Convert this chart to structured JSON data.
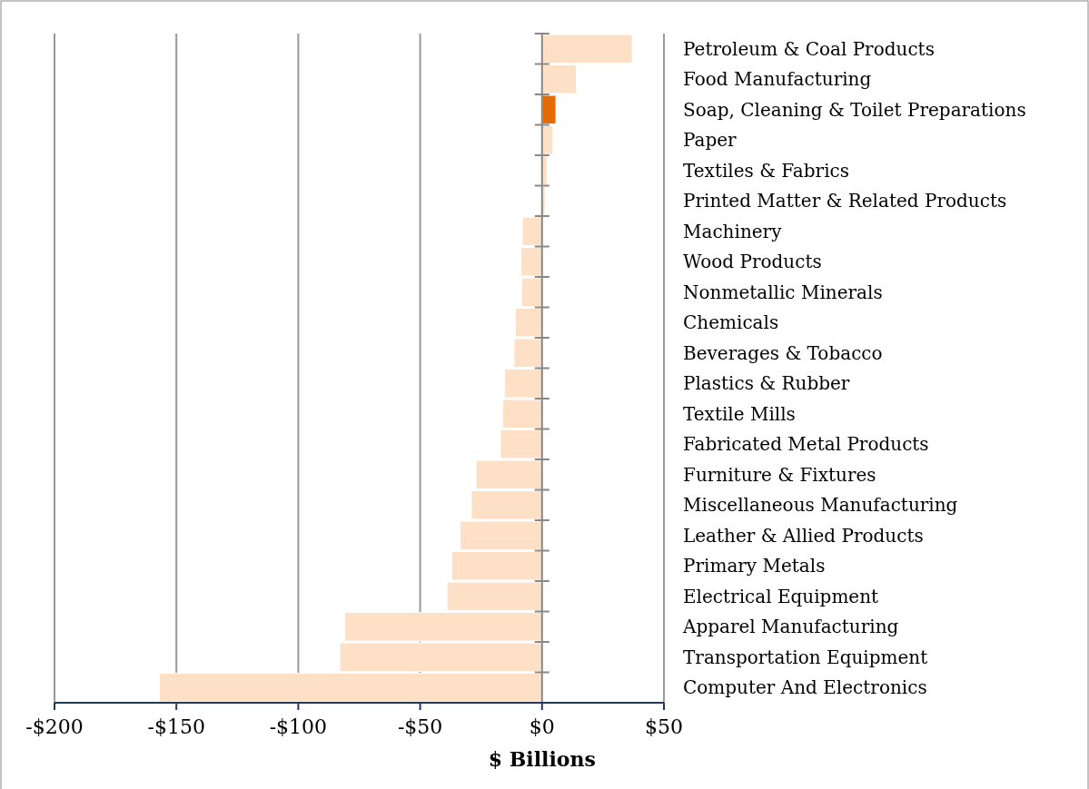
{
  "chart_data": {
    "type": "bar",
    "orientation": "horizontal",
    "xlabel": "$ Billions",
    "categories": [
      "Petroleum & Coal Products",
      "Food Manufacturing",
      "Soap, Cleaning & Toilet Preparations",
      "Paper",
      "Textiles & Fabrics",
      "Printed Matter & Related Products",
      "Machinery",
      "Wood Products",
      "Nonmetallic Minerals",
      "Chemicals",
      "Beverages & Tobacco",
      "Plastics & Rubber",
      "Textile Mills",
      "Fabricated Metal Products",
      "Furniture & Fixtures",
      "Miscellaneous Manufacturing",
      "Leather & Allied Products",
      "Primary Metals",
      "Electrical Equipment",
      "Apparel Manufacturing",
      "Transportation Equipment",
      "Computer And Electronics"
    ],
    "values": [
      37,
      14,
      5.7,
      4.5,
      2.2,
      1.2,
      -8.1,
      -8.6,
      -8.4,
      -10.9,
      -11.5,
      -15.3,
      -16.1,
      -17.1,
      -27.1,
      -29,
      -33.6,
      -37.1,
      -39,
      -81,
      -83,
      -157
    ],
    "colors": [
      "#fde0c5",
      "#fde0c5",
      "#e36c09",
      "#fde0c5",
      "#fde0c5",
      "#fde0c5",
      "#fde0c5",
      "#fde0c5",
      "#fde0c5",
      "#fde0c5",
      "#fde0c5",
      "#fde0c5",
      "#fde0c5",
      "#fde0c5",
      "#fde0c5",
      "#fde0c5",
      "#fde0c5",
      "#fde0c5",
      "#fde0c5",
      "#fde0c5",
      "#fde0c5",
      "#fde0c5"
    ],
    "xlim": [
      -200,
      50
    ],
    "xticks": [
      {
        "value": -200,
        "label": "-$200"
      },
      {
        "value": -150,
        "label": "-$150"
      },
      {
        "value": -100,
        "label": "-$100"
      },
      {
        "value": -50,
        "label": "-$50"
      },
      {
        "value": 0,
        "label": "$0"
      },
      {
        "value": 50,
        "label": "$50"
      }
    ],
    "grid": "x"
  }
}
